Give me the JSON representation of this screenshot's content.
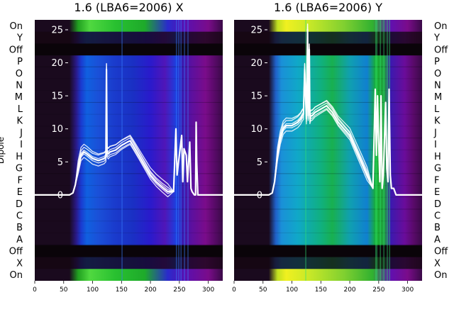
{
  "figure": {
    "ylabel": "Dipole",
    "colors": {
      "trace": "#ffffff",
      "background": "#ffffff",
      "text": "#000000"
    }
  },
  "chart_data": [
    {
      "type": "heatmap",
      "title": "1.6 (LBA6=2006) X",
      "ylabel": "Dipole",
      "dipole_labels_top_to_bottom": [
        "On",
        "Y",
        "Off",
        "P",
        "O",
        "N",
        "M",
        "L",
        "K",
        "J",
        "I",
        "H",
        "G",
        "F",
        "E",
        "D",
        "C",
        "B",
        "A",
        "Off",
        "X",
        "On"
      ],
      "xlim": [
        0,
        325
      ],
      "xticks": [
        0,
        50,
        100,
        150,
        200,
        250,
        300
      ],
      "ylim": [
        -13,
        26.5
      ],
      "yticks": [
        0,
        5,
        10,
        15,
        20,
        25
      ],
      "grid": false,
      "heatmap_columns": [
        {
          "x": 0,
          "color": "#1a0a1e"
        },
        {
          "x": 60,
          "color": "#1a0a1e"
        },
        {
          "x": 72,
          "color": "#2a1a8a"
        },
        {
          "x": 80,
          "color": "#1a3ad0"
        },
        {
          "x": 90,
          "color": "#1060e0"
        },
        {
          "x": 110,
          "color": "#1a50d8"
        },
        {
          "x": 140,
          "color": "#1a3acc"
        },
        {
          "x": 170,
          "color": "#1a30c4"
        },
        {
          "x": 200,
          "color": "#2a1acc"
        },
        {
          "x": 225,
          "color": "#5016b8"
        },
        {
          "x": 245,
          "color": "#1a40e0"
        },
        {
          "x": 255,
          "color": "#3a1ab0"
        },
        {
          "x": 270,
          "color": "#5a10a0"
        },
        {
          "x": 295,
          "color": "#7a0c8a"
        },
        {
          "x": 310,
          "color": "#5a0a6a"
        },
        {
          "x": 325,
          "color": "#3a0a48"
        }
      ],
      "on_band_columns": [
        {
          "x": 0,
          "color": "#1a0a1e"
        },
        {
          "x": 60,
          "color": "#1a0a1e"
        },
        {
          "x": 75,
          "color": "#20a020"
        },
        {
          "x": 95,
          "color": "#50d840"
        },
        {
          "x": 140,
          "color": "#28c030"
        },
        {
          "x": 190,
          "color": "#1eaa2a"
        },
        {
          "x": 230,
          "color": "#2a2acc"
        },
        {
          "x": 260,
          "color": "#5a10b0"
        },
        {
          "x": 300,
          "color": "#7a0c8a"
        },
        {
          "x": 325,
          "color": "#3a0a48"
        }
      ],
      "series": [
        {
          "x": [
            0,
            40,
            60,
            66,
            70,
            75,
            80,
            85,
            90,
            100,
            110,
            120,
            123,
            124,
            125,
            127,
            130,
            140,
            150,
            160,
            165,
            170,
            180,
            190,
            200,
            210,
            220,
            230,
            240,
            244,
            246,
            250,
            254,
            256,
            258,
            262,
            264,
            268,
            270,
            272,
            276,
            278,
            279,
            280,
            282,
            325
          ],
          "y": [
            0,
            0,
            0,
            0.3,
            1.5,
            4,
            6,
            6.5,
            6.2,
            5.5,
            5.2,
            5.5,
            5.8,
            19,
            6.5,
            6.2,
            6.5,
            6.8,
            7.5,
            8,
            8.2,
            7.5,
            6,
            4.5,
            3,
            2,
            1.2,
            0.5,
            0.5,
            10,
            3,
            6,
            9,
            2,
            7,
            6,
            2,
            8,
            1,
            0.5,
            0,
            0,
            11,
            5,
            0,
            0
          ]
        }
      ]
    },
    {
      "type": "heatmap",
      "title": "1.6 (LBA6=2006) Y",
      "ylabel": "",
      "dipole_labels_top_to_bottom": [
        "On",
        "Y",
        "Off",
        "P",
        "O",
        "N",
        "M",
        "L",
        "K",
        "J",
        "I",
        "H",
        "G",
        "F",
        "E",
        "D",
        "C",
        "B",
        "A",
        "Off",
        "X",
        "On"
      ],
      "xlim": [
        0,
        325
      ],
      "xticks": [
        0,
        50,
        100,
        150,
        200,
        250,
        300
      ],
      "ylim": [
        -13,
        26.5
      ],
      "yticks": [
        0,
        5,
        10,
        15,
        20,
        25
      ],
      "grid": false,
      "heatmap_columns": [
        {
          "x": 0,
          "color": "#1a0a1e"
        },
        {
          "x": 60,
          "color": "#1a0a1e"
        },
        {
          "x": 72,
          "color": "#2060c8"
        },
        {
          "x": 82,
          "color": "#1a90d8"
        },
        {
          "x": 110,
          "color": "#10a8c8"
        },
        {
          "x": 150,
          "color": "#10b080"
        },
        {
          "x": 170,
          "color": "#18b050"
        },
        {
          "x": 200,
          "color": "#10a0b0"
        },
        {
          "x": 230,
          "color": "#1080d0"
        },
        {
          "x": 245,
          "color": "#18b030"
        },
        {
          "x": 260,
          "color": "#20a040"
        },
        {
          "x": 270,
          "color": "#3a1ab0"
        },
        {
          "x": 295,
          "color": "#6a0c9a"
        },
        {
          "x": 310,
          "color": "#5a0a6a"
        },
        {
          "x": 325,
          "color": "#3a0a48"
        }
      ],
      "on_band_columns": [
        {
          "x": 0,
          "color": "#1a0a1e"
        },
        {
          "x": 60,
          "color": "#1a0a1e"
        },
        {
          "x": 75,
          "color": "#c0e020"
        },
        {
          "x": 90,
          "color": "#f0f020"
        },
        {
          "x": 130,
          "color": "#c8e828"
        },
        {
          "x": 190,
          "color": "#80d030"
        },
        {
          "x": 240,
          "color": "#30b030"
        },
        {
          "x": 270,
          "color": "#6010b0"
        },
        {
          "x": 300,
          "color": "#7a0c8a"
        },
        {
          "x": 325,
          "color": "#3a0a48"
        }
      ],
      "series": [
        {
          "x": [
            0,
            40,
            60,
            66,
            70,
            75,
            80,
            85,
            90,
            100,
            110,
            115,
            118,
            120,
            122,
            125,
            127,
            128,
            130,
            131,
            133,
            135,
            140,
            150,
            160,
            165,
            170,
            180,
            190,
            200,
            210,
            220,
            230,
            240,
            244,
            246,
            248,
            250,
            252,
            254,
            256,
            258,
            262,
            264,
            266,
            268,
            270,
            272,
            276,
            280,
            325
          ],
          "y": [
            0,
            0,
            0,
            0.3,
            2,
            6,
            8.5,
            10,
            10.5,
            10.5,
            11,
            11.5,
            12,
            12.2,
            19,
            11.5,
            25,
            12,
            22,
            11.5,
            12,
            12,
            12.5,
            13,
            13.5,
            13,
            12.5,
            11,
            10,
            9,
            7,
            5,
            3,
            1,
            16,
            6,
            15,
            8,
            2,
            15,
            1,
            3,
            14,
            4,
            2,
            16,
            3,
            1,
            1,
            0,
            0
          ]
        }
      ]
    }
  ]
}
